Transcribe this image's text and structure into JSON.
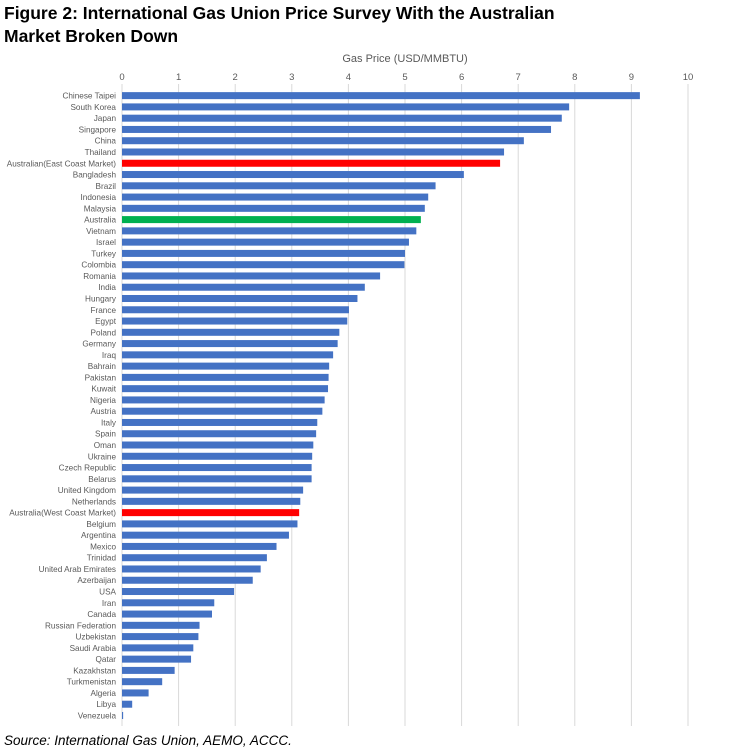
{
  "figure": {
    "title": "Figure 2: International Gas Union Price Survey With the Australian Market Broken Down",
    "source": "Source: International Gas Union, AEMO, ACCC."
  },
  "colors": {
    "default_bar": "#4472C4",
    "highlight_red": "#FF0000",
    "highlight_green": "#00B050",
    "grid": "#D9D9D9",
    "text": "#595959"
  },
  "chart_data": {
    "type": "bar",
    "orientation": "horizontal",
    "title": "",
    "xlabel": "Gas Price (USD/MMBTU)",
    "ylabel": "",
    "xlim": [
      0,
      10
    ],
    "x_ticks": [
      0,
      1,
      2,
      3,
      4,
      5,
      6,
      7,
      8,
      9,
      10
    ],
    "axis_position": "top",
    "grid": true,
    "categories": [
      "Chinese Taipei",
      "South Korea",
      "Japan",
      "Singapore",
      "China",
      "Thailand",
      "Australian(East Coast Market)",
      "Bangladesh",
      "Brazil",
      "Indonesia",
      "Malaysia",
      "Australia",
      "Vietnam",
      "Israel",
      "Turkey",
      "Colombia",
      "Romania",
      "India",
      "Hungary",
      "France",
      "Egypt",
      "Poland",
      "Germany",
      "Iraq",
      "Bahrain",
      "Pakistan",
      "Kuwait",
      "Nigeria",
      "Austria",
      "Italy",
      "Spain",
      "Oman",
      "Ukraine",
      "Czech Republic",
      "Belarus",
      "United Kingdom",
      "Netherlands",
      "Australia(West Coast Market)",
      "Belgium",
      "Argentina",
      "Mexico",
      "Trinidad",
      "United Arab Emirates",
      "Azerbaijan",
      "USA",
      "Iran",
      "Canada",
      "Russian Federation",
      "Uzbekistan",
      "Saudi Arabia",
      "Qatar",
      "Kazakhstan",
      "Turkmenistan",
      "Algeria",
      "Libya",
      "Venezuela"
    ],
    "values": [
      9.15,
      7.9,
      7.77,
      7.58,
      7.1,
      6.75,
      6.68,
      6.04,
      5.54,
      5.41,
      5.35,
      5.28,
      5.2,
      5.07,
      5.0,
      4.99,
      4.56,
      4.29,
      4.16,
      4.01,
      3.98,
      3.84,
      3.81,
      3.73,
      3.66,
      3.65,
      3.64,
      3.58,
      3.54,
      3.45,
      3.43,
      3.38,
      3.36,
      3.35,
      3.35,
      3.2,
      3.15,
      3.13,
      3.1,
      2.95,
      2.73,
      2.56,
      2.45,
      2.31,
      1.98,
      1.63,
      1.59,
      1.37,
      1.35,
      1.26,
      1.22,
      0.93,
      0.71,
      0.47,
      0.18,
      0.02
    ],
    "highlights": {
      "Australian(East Coast Market)": "#FF0000",
      "Australia": "#00B050",
      "Australia(West Coast Market)": "#FF0000"
    }
  }
}
